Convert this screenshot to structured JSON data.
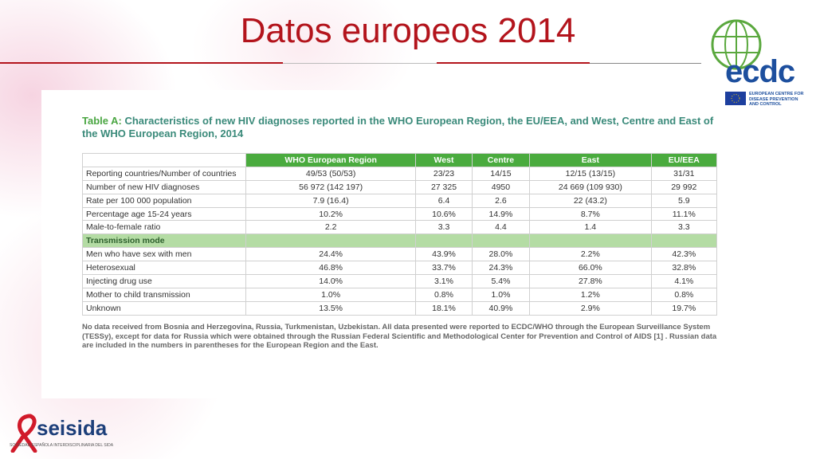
{
  "title": "Datos europeos 2014",
  "table": {
    "caption_label": "Table A:",
    "caption": "Characteristics of new HIV diagnoses reported in the WHO European Region, the EU/EEA, and West, Centre and East of the WHO European Region, 2014",
    "columns": [
      "",
      "WHO European Region",
      "West",
      "Centre",
      "East",
      "EU/EEA"
    ],
    "rows": [
      [
        "Reporting countries/Number of countries",
        "49/53 (50/53)",
        "23/23",
        "14/15",
        "12/15 (13/15)",
        "31/31"
      ],
      [
        "Number of new HIV diagnoses",
        "56 972 (142 197)",
        "27 325",
        "4950",
        "24 669 (109 930)",
        "29 992"
      ],
      [
        "Rate per 100 000 population",
        "7.9 (16.4)",
        "6.4",
        "2.6",
        "22 (43.2)",
        "5.9"
      ],
      [
        "Percentage age 15-24 years",
        "10.2%",
        "10.6%",
        "14.9%",
        "8.7%",
        "11.1%"
      ],
      [
        "Male-to-female ratio",
        "2.2",
        "3.3",
        "4.4",
        "1.4",
        "3.3"
      ]
    ],
    "section": "Transmission mode",
    "section_rows": [
      [
        "Men who have sex with men",
        "24.4%",
        "43.9%",
        "28.0%",
        "2.2%",
        "42.3%"
      ],
      [
        "Heterosexual",
        "46.8%",
        "33.7%",
        "24.3%",
        "66.0%",
        "32.8%"
      ],
      [
        "Injecting drug use",
        "14.0%",
        "3.1%",
        "5.4%",
        "27.8%",
        "4.1%"
      ],
      [
        "Mother to child transmission",
        "1.0%",
        "0.8%",
        "1.0%",
        "1.2%",
        "0.8%"
      ],
      [
        "Unknown",
        "13.5%",
        "18.1%",
        "40.9%",
        "2.9%",
        "19.7%"
      ]
    ],
    "note": "No data received from Bosnia and Herzegovina, Russia, Turkmenistan, Uzbekistan. All data presented were reported to ECDC/WHO through the European Surveillance System (TESSy), except for data for Russia which were obtained through the Russian Federal Scientific and Methodological Center for Prevention and Control of AIDS [1] . Russian data are included in the numbers in parentheses for the European Region and the East."
  },
  "ecdc": {
    "name": "ecdc",
    "subtitle": "EUROPEAN CENTRE FOR DISEASE PREVENTION AND CONTROL"
  },
  "seisida": {
    "name": "seisida",
    "subtitle": "SOCIEDAD ESPAÑOLA INTERDISCIPLINARIA DEL SIDA"
  }
}
